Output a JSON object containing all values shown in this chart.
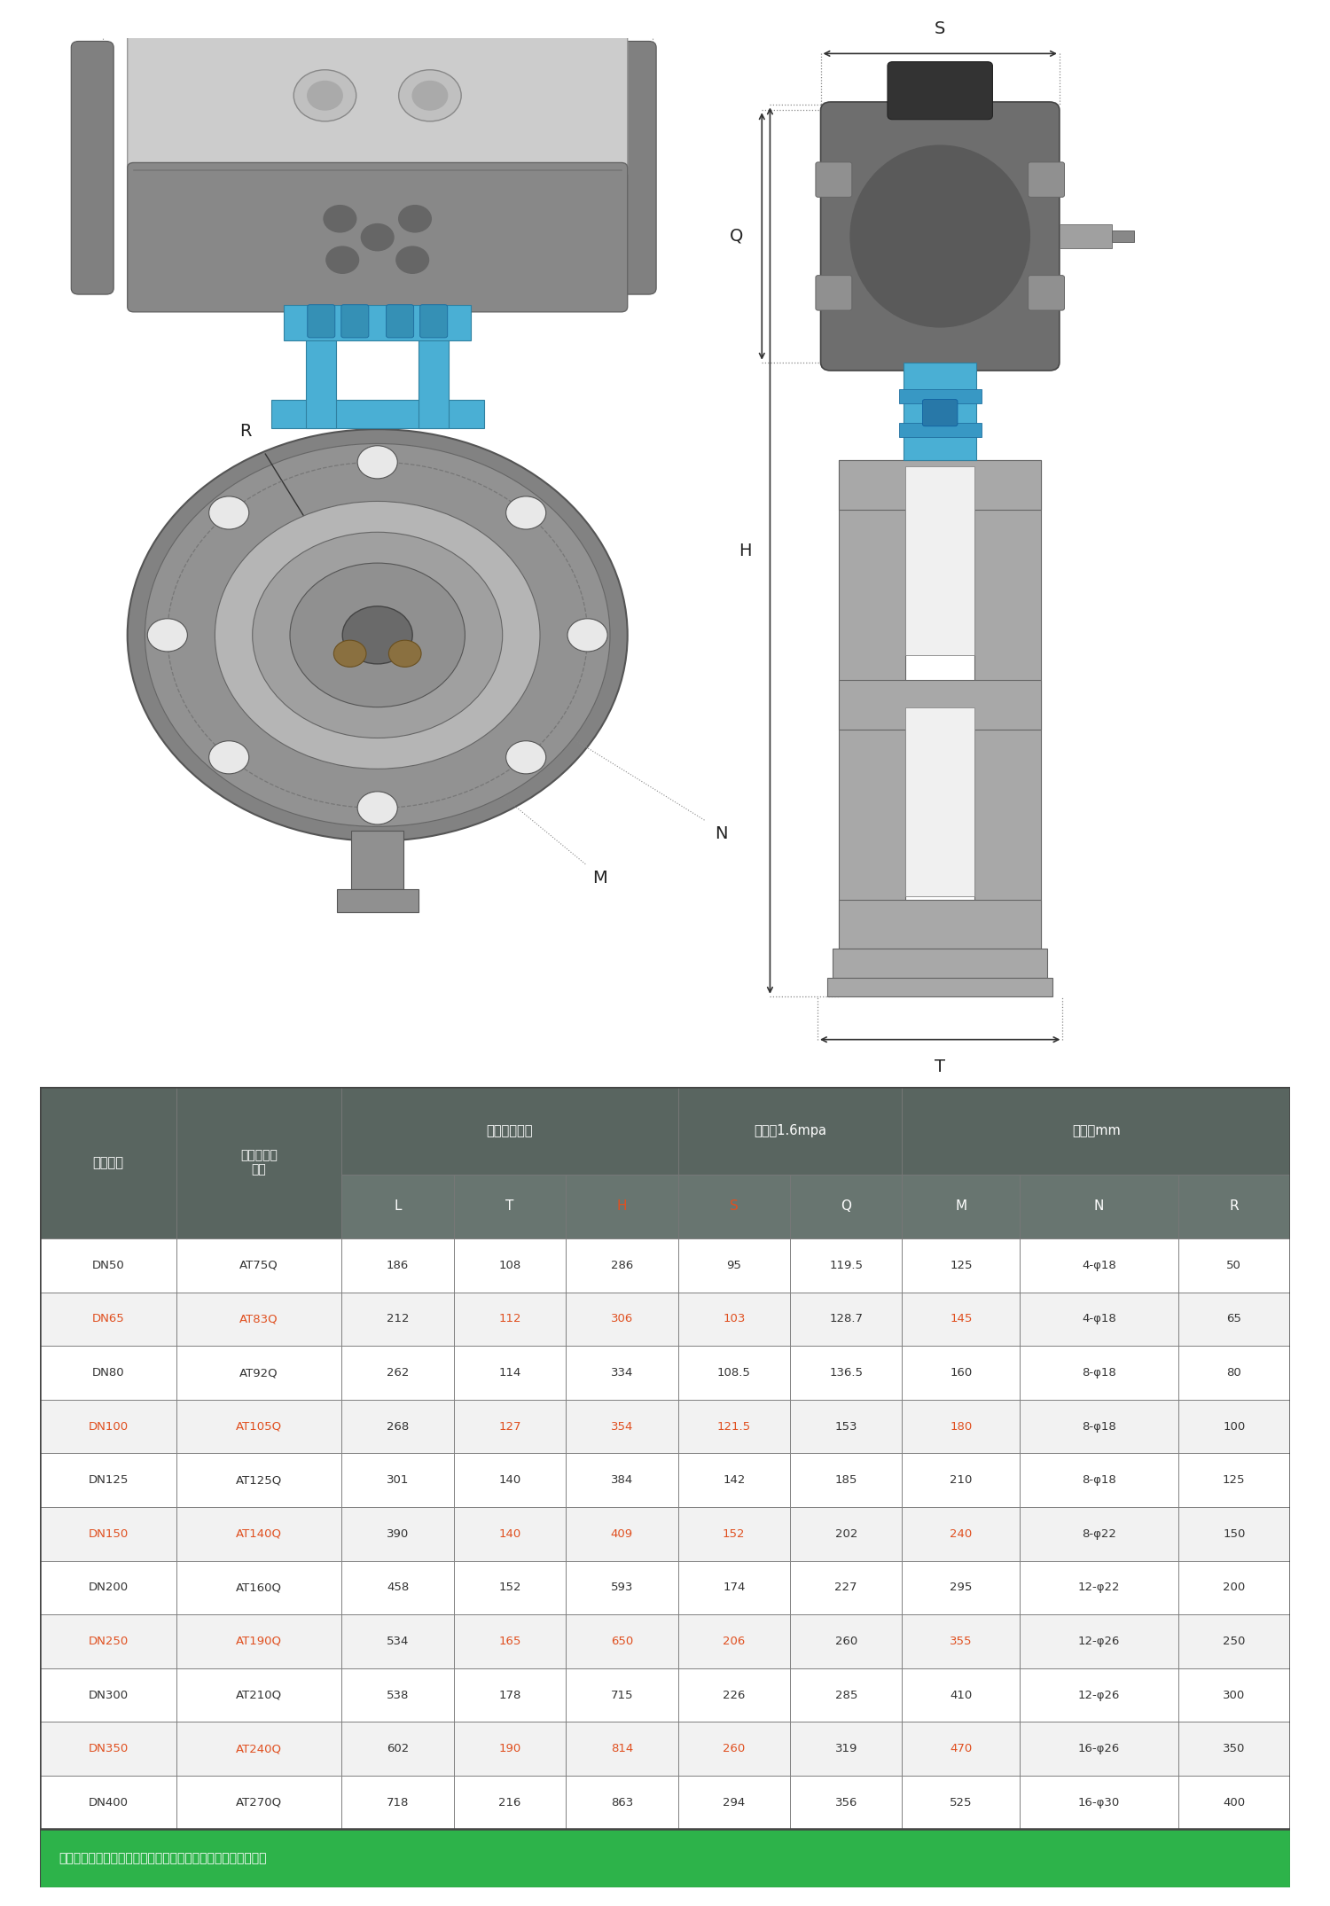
{
  "footer_text": "执行器配型仅作为参考，更多口径尺寸或其他尺寸请联系客服。",
  "highlight_rows": [
    1,
    3,
    5,
    7,
    9
  ],
  "highlight_color": "#e05020",
  "normal_color": "#333333",
  "green_footer_bg": "#2db34a",
  "header_bg": "#596560",
  "subheader_bg": "#687570",
  "bg_color": "#ffffff",
  "dim_label_color": "#222222",
  "blue": "#4aafd4",
  "rows": [
    [
      "DN50",
      "AT75Q",
      "186",
      "108",
      "286",
      "95",
      "119.5",
      "125",
      "4-φ18",
      "50"
    ],
    [
      "DN65",
      "AT83Q",
      "212",
      "112",
      "306",
      "103",
      "128.7",
      "145",
      "4-φ18",
      "65"
    ],
    [
      "DN80",
      "AT92Q",
      "262",
      "114",
      "334",
      "108.5",
      "136.5",
      "160",
      "8-φ18",
      "80"
    ],
    [
      "DN100",
      "AT105Q",
      "268",
      "127",
      "354",
      "121.5",
      "153",
      "180",
      "8-φ18",
      "100"
    ],
    [
      "DN125",
      "AT125Q",
      "301",
      "140",
      "384",
      "142",
      "185",
      "210",
      "8-φ18",
      "125"
    ],
    [
      "DN150",
      "AT140Q",
      "390",
      "140",
      "409",
      "152",
      "202",
      "240",
      "8-φ22",
      "150"
    ],
    [
      "DN200",
      "AT160Q",
      "458",
      "152",
      "593",
      "174",
      "227",
      "295",
      "12-φ22",
      "200"
    ],
    [
      "DN250",
      "AT190Q",
      "534",
      "165",
      "650",
      "206",
      "260",
      "355",
      "12-φ26",
      "250"
    ],
    [
      "DN300",
      "AT210Q",
      "538",
      "178",
      "715",
      "226",
      "285",
      "410",
      "12-φ26",
      "300"
    ],
    [
      "DN350",
      "AT240Q",
      "602",
      "190",
      "814",
      "260",
      "319",
      "470",
      "16-φ26",
      "350"
    ],
    [
      "DN400",
      "AT270Q",
      "718",
      "216",
      "863",
      "294",
      "356",
      "525",
      "16-φ30",
      "400"
    ]
  ]
}
